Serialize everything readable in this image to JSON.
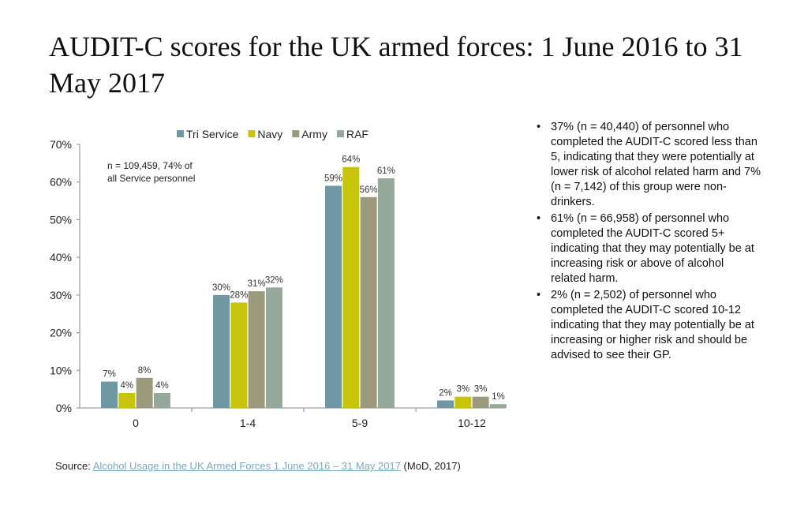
{
  "title": "AUDIT-C scores for the UK armed forces: 1 June 2016 to 31 May 2017",
  "chart_data": {
    "type": "bar",
    "categories": [
      "0",
      "1-4",
      "5-9",
      "10-12"
    ],
    "series": [
      {
        "name": "Tri Service",
        "color": "#6f98a4",
        "values": [
          7,
          30,
          59,
          2
        ]
      },
      {
        "name": "Navy",
        "color": "#c8c40c",
        "values": [
          4,
          28,
          64,
          3
        ]
      },
      {
        "name": "Army",
        "color": "#9c9a7c",
        "values": [
          8,
          31,
          56,
          3
        ]
      },
      {
        "name": "RAF",
        "color": "#95a99b",
        "values": [
          4,
          32,
          61,
          1
        ]
      }
    ],
    "ylim": [
      0,
      70
    ],
    "yticks": [
      "0%",
      "10%",
      "20%",
      "30%",
      "40%",
      "50%",
      "60%",
      "70%"
    ],
    "ytick_values": [
      0,
      10,
      20,
      30,
      40,
      50,
      60,
      70
    ],
    "legend": "top",
    "annotation_line1": "n = 109,459, 74% of",
    "annotation_line2": "all Service personnel"
  },
  "notes": [
    "37% (n = 40,440) of personnel who completed the AUDIT-C scored less than 5, indicating that they were potentially at lower risk of alcohol related harm and 7% (n = 7,142) of this group were non-drinkers.",
    "61% (n = 66,958) of personnel who completed the AUDIT-C scored 5+ indicating that they may potentially be at increasing risk or above of alcohol related harm.",
    "2% (n = 2,502) of personnel who completed the AUDIT-C scored 10-12 indicating that they may potentially be at increasing or higher risk and should be advised to see their GP."
  ],
  "bullet": "•",
  "source": {
    "prefix": "Source: ",
    "link": "Alcohol Usage in the UK Armed Forces 1 June 2016 – 31 May 2017",
    "suffix": " (MoD, 2017)"
  }
}
